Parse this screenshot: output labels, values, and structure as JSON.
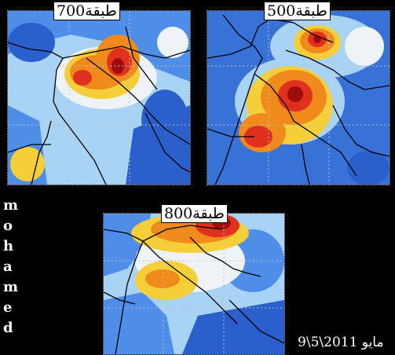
{
  "panels": [
    {
      "id": "p700",
      "label": "طبقة700"
    },
    {
      "id": "p500",
      "label": "طبقة500"
    },
    {
      "id": "p800",
      "label": "طبقة800"
    }
  ],
  "side_letters": [
    "m",
    "o",
    "h",
    "a",
    "m",
    "e",
    "d"
  ],
  "date": "مايو 2011\\5\\9",
  "colors": {
    "background": "#000000",
    "deep_blue": "#2b5fcc",
    "mid_blue": "#4f8ee8",
    "light_blue": "#a9d3f5",
    "pale": "#eef3f7",
    "yellow": "#f5cf3a",
    "orange": "#f08a1d",
    "red": "#e0301e",
    "dark_red": "#9e0d0d",
    "coast": "#000000",
    "grid": "#c0c0c0"
  }
}
